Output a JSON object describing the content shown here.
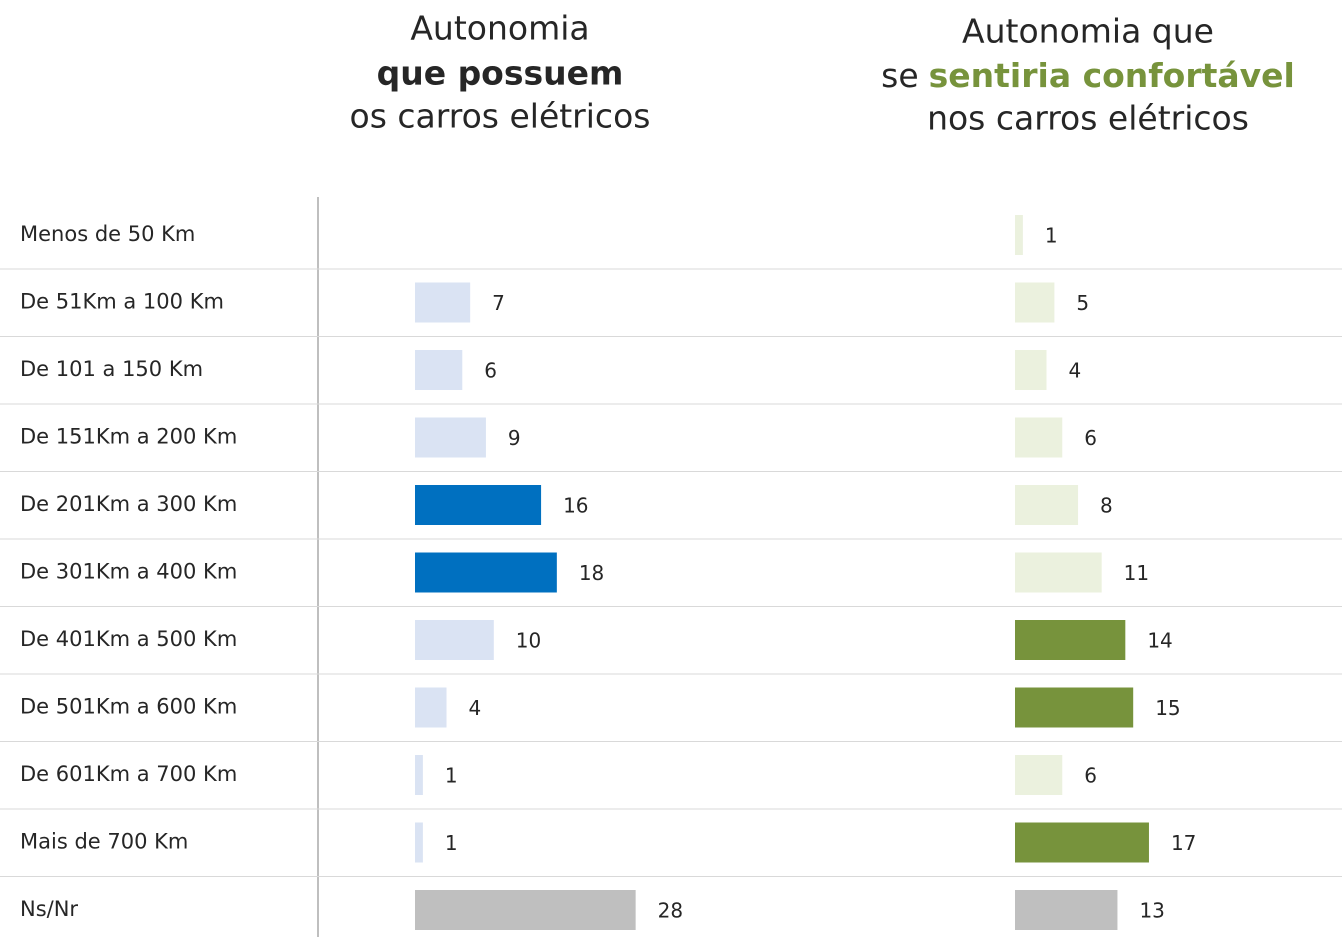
{
  "chart_data": [
    {
      "type": "bar",
      "orientation": "horizontal",
      "title": [
        "Autonomia",
        "que possuem",
        "os carros elétricos"
      ],
      "highlight_color": "#0070c0",
      "categories": [
        "Menos de 50 Km",
        "De 51Km a 100 Km",
        "De 101 a 150 Km",
        "De 151Km a 200 Km",
        "De 201Km a 300 Km",
        "De 301Km a 400 Km",
        "De 401Km a 500 Km",
        "De 501Km a 600 Km",
        "De 601Km a 700 Km",
        "Mais de 700 Km",
        "Ns/Nr"
      ],
      "values": [
        null,
        7,
        6,
        9,
        16,
        18,
        10,
        4,
        1,
        1,
        28
      ],
      "colors": [
        "#dae3f3",
        "#dae3f3",
        "#dae3f3",
        "#dae3f3",
        "#0070c0",
        "#0070c0",
        "#dae3f3",
        "#dae3f3",
        "#dae3f3",
        "#dae3f3",
        "#bfbfbf"
      ]
    },
    {
      "type": "bar",
      "orientation": "horizontal",
      "title": [
        "Autonomia que",
        "se",
        "sentiria confortável",
        "nos carros elétricos"
      ],
      "highlight_color": "#77933c",
      "values": [
        1,
        5,
        4,
        6,
        8,
        11,
        14,
        15,
        6,
        17,
        13
      ],
      "colors": [
        "#ebf1de",
        "#ebf1de",
        "#ebf1de",
        "#ebf1de",
        "#ebf1de",
        "#ebf1de",
        "#77933c",
        "#77933c",
        "#ebf1de",
        "#77933c",
        "#bfbfbf"
      ]
    }
  ]
}
